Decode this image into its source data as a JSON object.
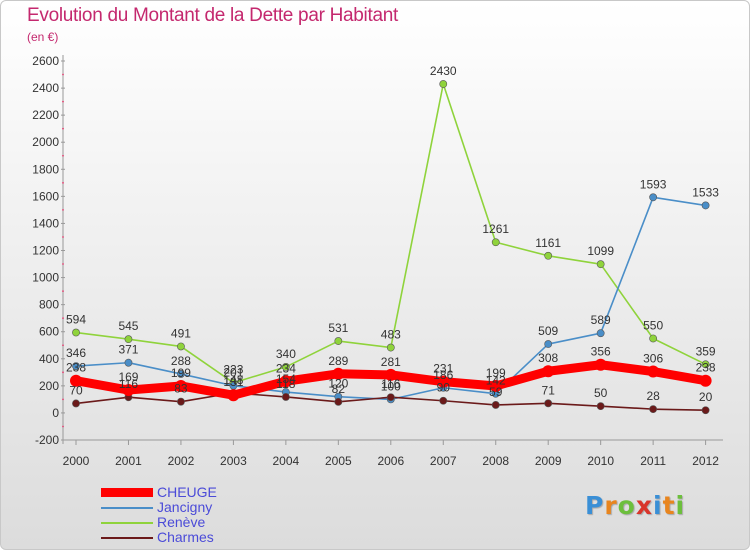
{
  "header": {
    "title": "Evolution du Montant de la Dette par Habitant",
    "subtitle": "(en €)"
  },
  "logo": {
    "text": "Proxiti",
    "letter_colors": [
      "#3a8fd6",
      "#e8851e",
      "#6cbf3c",
      "#d9352b",
      "#3a8fd6",
      "#e8851e",
      "#6cbf3c"
    ]
  },
  "chart_data": {
    "type": "line",
    "title": "Evolution du Montant de la Dette par Habitant",
    "subtitle": "(en €)",
    "xlabel": "",
    "ylabel": "",
    "categories": [
      "2000",
      "2001",
      "2002",
      "2003",
      "2004",
      "2005",
      "2006",
      "2007",
      "2008",
      "2009",
      "2010",
      "2011",
      "2012"
    ],
    "ylim": [
      -200,
      2600
    ],
    "yticks": [
      -200,
      0,
      200,
      400,
      600,
      800,
      1000,
      1200,
      1400,
      1600,
      1800,
      2000,
      2200,
      2400,
      2600
    ],
    "grid": false,
    "legend_position": "bottom-left",
    "series": [
      {
        "name": "CHEUGE",
        "color": "#ff0000",
        "values": [
          238,
          169,
          199,
          131,
          234,
          289,
          281,
          231,
          199,
          308,
          356,
          306,
          238
        ],
        "labels": [
          "238",
          "169",
          "199",
          "131",
          "234",
          "289",
          "281",
          "231",
          "199",
          "308",
          "356",
          "306",
          "238"
        ]
      },
      {
        "name": "Jancigny",
        "color": "#4a8ec8",
        "values": [
          346,
          371,
          288,
          201,
          154,
          120,
          100,
          186,
          142,
          509,
          589,
          1593,
          1533
        ],
        "labels": [
          "346",
          "371",
          "288",
          "201",
          "154",
          "120",
          "100",
          "186",
          "142",
          "509",
          "589",
          "1593",
          "1533"
        ]
      },
      {
        "name": "Renève",
        "color": "#8fd33b",
        "values": [
          594,
          545,
          491,
          223,
          340,
          531,
          483,
          2430,
          1261,
          1161,
          1099,
          550,
          359
        ],
        "labels": [
          "594",
          "545",
          "491",
          "223",
          "340",
          "531",
          "483",
          "2430",
          "1261",
          "1161",
          "1099",
          "550",
          "359"
        ]
      },
      {
        "name": "Charmes",
        "color": "#6b1a1a",
        "values": [
          70,
          116,
          83,
          148,
          118,
          82,
          116,
          90,
          59,
          71,
          50,
          28,
          20
        ],
        "labels": [
          "70",
          "116",
          "83",
          "148",
          "118",
          "82",
          "116",
          "90",
          "59",
          "71",
          "50",
          "28",
          "20"
        ]
      }
    ]
  }
}
